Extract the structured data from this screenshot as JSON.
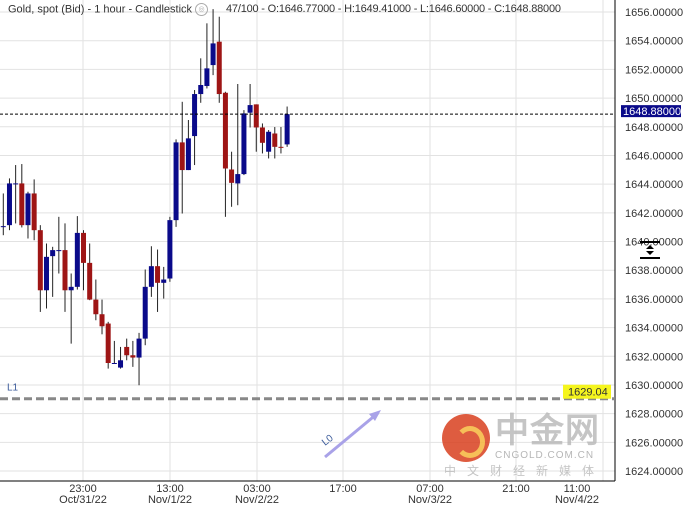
{
  "header": {
    "title": "Gold, spot (Bid) - 1 hour - Candlestick",
    "ohlc": "47/100 - O:1646.77000 - H:1649.41000 - L:1646.60000 - C:1648.88000"
  },
  "colors": {
    "up": "#0a0a8a",
    "down": "#9e1515",
    "last_price_bg": "#0a0a8a",
    "level_label_bg": "#f5f51e",
    "level_line": "#888888",
    "trend_arrow": "#a9a2e8",
    "grid": "#e2e2e2"
  },
  "watermark": {
    "cn": "中金网",
    "en": "CNGOLD.COM.CN",
    "sub": "中文财经新媒体"
  },
  "chart_data": {
    "type": "candlestick",
    "ylim": [
      1623,
      1657
    ],
    "y_ticks": [
      "1624.00000",
      "1626.00000",
      "1628.00000",
      "1630.00000",
      "1632.00000",
      "1634.00000",
      "1636.00000",
      "1638.00000",
      "1640.00000",
      "1642.00000",
      "1644.00000",
      "1646.00000",
      "1648.00000",
      "1650.00000",
      "1652.00000",
      "1654.00000",
      "1656.00000"
    ],
    "x_ticks": [
      {
        "time": "23:00",
        "date": "Oct/31/22"
      },
      {
        "time": "13:00",
        "date": "Nov/1/22"
      },
      {
        "time": "03:00",
        "date": "Nov/2/22"
      },
      {
        "time": "17:00",
        "date": ""
      },
      {
        "time": "07:00",
        "date": "Nov/3/22"
      },
      {
        "time": "21:00",
        "date": ""
      },
      {
        "time": "11:00",
        "date": "Nov/4/22"
      }
    ],
    "last_price": "1648.88000",
    "level": {
      "name": "L1",
      "value": "1629.04"
    },
    "trendline": {
      "name": "L0"
    },
    "candles": [
      [
        1641.07,
        1643.35,
        1640.44,
        1641.07
      ],
      [
        1641.14,
        1644.4,
        1640.79,
        1644.05
      ],
      [
        1644.05,
        1645.33,
        1641.26,
        1644.05
      ],
      [
        1644.05,
        1645.4,
        1640.98,
        1641.14
      ],
      [
        1641.14,
        1643.47,
        1640.21,
        1643.35
      ],
      [
        1643.35,
        1644.33,
        1640.09,
        1640.79
      ],
      [
        1640.79,
        1641.14,
        1635.09,
        1636.6
      ],
      [
        1636.6,
        1639.86,
        1635.33,
        1638.93
      ],
      [
        1638.98,
        1639.63,
        1636.14,
        1639.4
      ],
      [
        1639.4,
        1641.72,
        1637.77,
        1639.4
      ],
      [
        1639.4,
        1641.26,
        1635.09,
        1636.6
      ],
      [
        1636.6,
        1637.77,
        1632.88,
        1636.84
      ],
      [
        1636.84,
        1641.77,
        1636.65,
        1640.6
      ],
      [
        1640.6,
        1640.79,
        1636.6,
        1638.51
      ],
      [
        1638.51,
        1639.86,
        1635.91,
        1635.95
      ],
      [
        1635.95,
        1637.35,
        1634.51,
        1634.93
      ],
      [
        1634.93,
        1635.95,
        1633.53,
        1634.09
      ],
      [
        1634.28,
        1634.4,
        1631.14,
        1631.53
      ],
      [
        1631.53,
        1633.07,
        1631.49,
        1631.53
      ],
      [
        1631.21,
        1632.65,
        1631.14,
        1631.72
      ],
      [
        1632.65,
        1633.23,
        1631.72,
        1632.07
      ],
      [
        1632.07,
        1633.07,
        1631.26,
        1631.91
      ],
      [
        1631.91,
        1633.63,
        1629.98,
        1633.23
      ],
      [
        1633.23,
        1638.05,
        1632.77,
        1636.84
      ],
      [
        1636.84,
        1639.67,
        1636.14,
        1638.28
      ],
      [
        1638.28,
        1639.44,
        1635.09,
        1637.12
      ],
      [
        1637.12,
        1638.23,
        1636.02,
        1637.35
      ],
      [
        1637.42,
        1641.72,
        1637.19,
        1641.49
      ],
      [
        1641.49,
        1647.12,
        1641.02,
        1646.91
      ],
      [
        1646.91,
        1649.74,
        1641.95,
        1644.98
      ],
      [
        1644.98,
        1648.47,
        1644.98,
        1647.19
      ],
      [
        1647.35,
        1650.56,
        1645.33,
        1650.28
      ],
      [
        1650.28,
        1652.77,
        1649.67,
        1650.91
      ],
      [
        1650.84,
        1655.21,
        1650.67,
        1652.07
      ],
      [
        1652.3,
        1656.2,
        1651.6,
        1653.81
      ],
      [
        1653.93,
        1655.67,
        1649.67,
        1650.28
      ],
      [
        1650.37,
        1650.44,
        1641.72,
        1645.09
      ],
      [
        1645.02,
        1646.26,
        1642.42,
        1644.09
      ],
      [
        1644.05,
        1650.98,
        1642.53,
        1644.7
      ],
      [
        1644.7,
        1649.16,
        1644.63,
        1648.93
      ],
      [
        1648.98,
        1650.98,
        1647.95,
        1649.51
      ],
      [
        1649.56,
        1649.56,
        1646.26,
        1647.95
      ],
      [
        1647.95,
        1648.23,
        1646.14,
        1646.88
      ],
      [
        1646.26,
        1647.77,
        1645.79,
        1647.65
      ],
      [
        1647.53,
        1647.98,
        1645.79,
        1646.6
      ],
      [
        1646.6,
        1647.98,
        1646.14,
        1646.56
      ],
      [
        1646.77,
        1649.41,
        1646.6,
        1648.88
      ]
    ]
  }
}
